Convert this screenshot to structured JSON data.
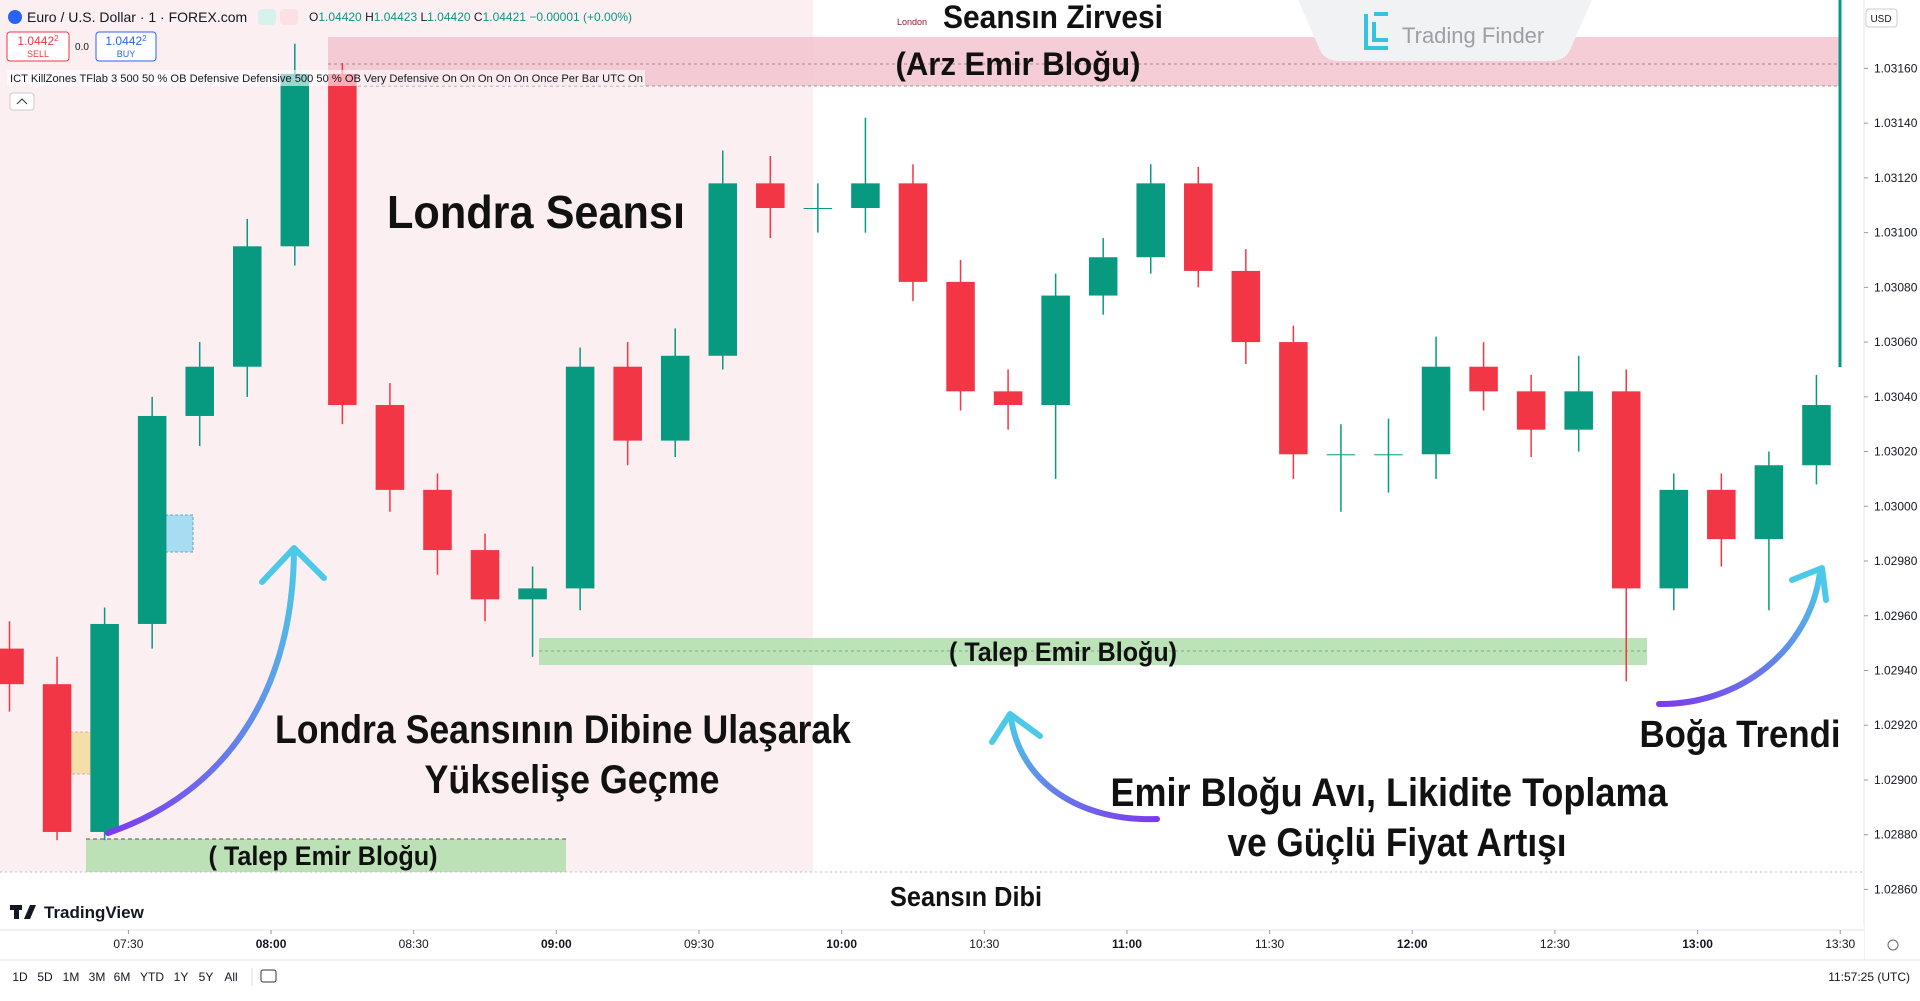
{
  "header": {
    "symbol": "Euro / U.S. Dollar · 1 · FOREX.com",
    "ohlc": [
      "O",
      "1.04420",
      "H",
      "1.04423",
      "L",
      "1.04420",
      "C",
      "1.04421",
      "−0.00001 (+0.00%)"
    ],
    "sell_price": "1.0442",
    "sell_pip": "2",
    "sell_label": "SELL",
    "spread": "0.0",
    "buy_price": "1.0442",
    "buy_pip": "2",
    "buy_label": "BUY",
    "indicator": "ICT KillZones TFlab 3 500 50 % OB Defensive Defensive 500 50 % OB Very Defensive On On On On On Once Per Bar UTC On",
    "currency": "USD"
  },
  "annotations": {
    "session_label": "London",
    "brand": "Trading Finder",
    "session_high": "Seansın Zirvesi",
    "supply_block": "(Arz Emir Bloğu)",
    "london_session": "Londra Seansı",
    "demand_block_1": "( Talep Emir Bloğu)",
    "demand_block_2": "( Talep Emir Bloğu)",
    "note_1_line_1": "Londra Seansının Dibine Ulaşarak",
    "note_1_line_2": "Yükselişe Geçme",
    "note_2_line_1": "Emir Bloğu Avı, Likidite Toplama",
    "note_2_line_2": "ve Güçlü Fiyat Artışı",
    "bull_trend": "Boğa Trendi",
    "session_low": "Seansın Dibi"
  },
  "footer": {
    "logo": "TradingView",
    "ranges": [
      "1D",
      "5D",
      "1M",
      "3M",
      "6M",
      "YTD",
      "1Y",
      "5Y",
      "All"
    ],
    "clock": "11:57:25 (UTC)"
  },
  "chart_data": {
    "type": "candlestick",
    "up_color": "#089981",
    "down_color": "#f23645",
    "x": [
      "07:05",
      "07:15",
      "07:25",
      "07:35",
      "07:45",
      "07:55",
      "08:05",
      "08:15",
      "08:25",
      "08:35",
      "08:45",
      "08:55",
      "09:05",
      "09:15",
      "09:25",
      "09:35",
      "09:45",
      "09:55",
      "10:05",
      "10:15",
      "10:25",
      "10:35",
      "10:45",
      "10:55",
      "11:05",
      "11:15",
      "11:25",
      "11:35",
      "11:45",
      "11:55",
      "12:05",
      "12:15",
      "12:25",
      "12:35",
      "12:45",
      "12:55",
      "13:05",
      "13:15",
      "13:25"
    ],
    "open": [
      1.02948,
      1.02935,
      1.02881,
      1.02957,
      1.03033,
      1.03051,
      1.03095,
      1.03158,
      1.03037,
      1.03006,
      1.02984,
      1.02966,
      1.0297,
      1.03051,
      1.03024,
      1.03055,
      1.03118,
      1.03109,
      1.03109,
      1.03118,
      1.03082,
      1.03042,
      1.03037,
      1.03077,
      1.03091,
      1.03118,
      1.03086,
      1.0306,
      1.03019,
      1.03019,
      1.03019,
      1.03051,
      1.03042,
      1.03028,
      1.03042,
      1.0297,
      1.03006,
      1.02988,
      1.03015
    ],
    "high": [
      1.02958,
      1.02945,
      1.02963,
      1.0304,
      1.0306,
      1.03105,
      1.03169,
      1.03162,
      1.03045,
      1.03012,
      1.0299,
      1.02978,
      1.03058,
      1.0306,
      1.03065,
      1.0313,
      1.03128,
      1.03118,
      1.03142,
      1.03125,
      1.0309,
      1.0305,
      1.03085,
      1.03098,
      1.03125,
      1.03124,
      1.03094,
      1.03066,
      1.0303,
      1.03032,
      1.03062,
      1.0306,
      1.03048,
      1.03055,
      1.0305,
      1.03012,
      1.03012,
      1.0302,
      1.03048
    ],
    "low": [
      1.02925,
      1.02878,
      1.02878,
      1.02948,
      1.03022,
      1.0304,
      1.03088,
      1.0303,
      1.02998,
      1.02975,
      1.02958,
      1.02945,
      1.02962,
      1.03015,
      1.03018,
      1.0305,
      1.03098,
      1.031,
      1.031,
      1.03075,
      1.03035,
      1.03028,
      1.0301,
      1.0307,
      1.03085,
      1.0308,
      1.03052,
      1.0301,
      1.02998,
      1.03005,
      1.0301,
      1.03035,
      1.03018,
      1.0302,
      1.02936,
      1.02962,
      1.02978,
      1.02962,
      1.03008
    ],
    "close": [
      1.02935,
      1.02881,
      1.02957,
      1.03033,
      1.03051,
      1.03095,
      1.03158,
      1.03037,
      1.03006,
      1.02984,
      1.02966,
      1.0297,
      1.03051,
      1.03024,
      1.03055,
      1.03118,
      1.03109,
      1.03109,
      1.03118,
      1.03082,
      1.03042,
      1.03037,
      1.03077,
      1.03091,
      1.03118,
      1.03086,
      1.0306,
      1.03019,
      1.03019,
      1.03019,
      1.03051,
      1.03042,
      1.03028,
      1.03042,
      1.0297,
      1.03006,
      1.02988,
      1.03015,
      1.03037
    ],
    "xlim": [
      "07:03",
      "13:35"
    ],
    "xticks": [
      "07:30",
      "08:00",
      "08:30",
      "09:00",
      "09:30",
      "10:00",
      "10:30",
      "11:00",
      "11:30",
      "12:00",
      "12:30",
      "13:00",
      "13:30"
    ],
    "ylim": [
      1.02847,
      1.03185
    ],
    "yticks": [
      {
        "value": 1.0316,
        "label": "1.03160"
      },
      {
        "value": 1.0314,
        "label": "1.03140"
      },
      {
        "value": 1.0312,
        "label": "1.03120"
      },
      {
        "value": 1.031,
        "label": "1.03100"
      },
      {
        "value": 1.0308,
        "label": "1.03080"
      },
      {
        "value": 1.0306,
        "label": "1.03060"
      },
      {
        "value": 1.0304,
        "label": "1.03040"
      },
      {
        "value": 1.0302,
        "label": "1.03020"
      },
      {
        "value": 1.03,
        "label": "1.03000"
      },
      {
        "value": 1.0298,
        "label": "1.02980"
      },
      {
        "value": 1.0296,
        "label": "1.02960"
      },
      {
        "value": 1.0294,
        "label": "1.02940"
      },
      {
        "value": 1.0292,
        "label": "1.02920"
      },
      {
        "value": 1.029,
        "label": "1.02900"
      },
      {
        "value": 1.0288,
        "label": "1.02880"
      },
      {
        "value": 1.0286,
        "label": "1.02860"
      }
    ]
  }
}
